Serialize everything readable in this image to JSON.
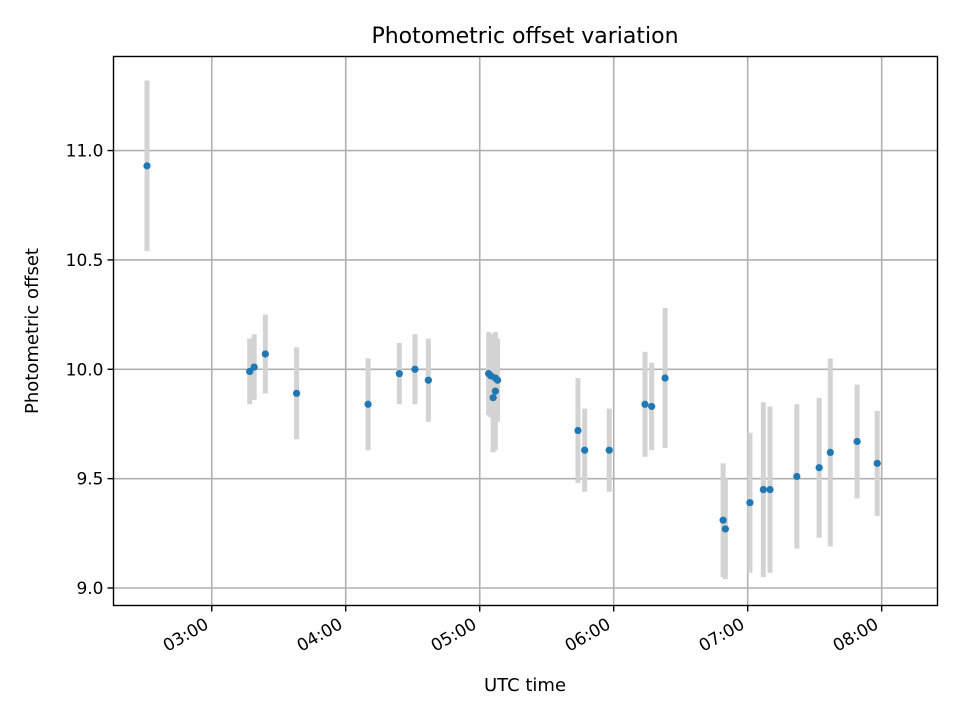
{
  "chart_data": {
    "type": "scatter",
    "title": "Photometric offset variation",
    "xlabel": "UTC time",
    "ylabel": "Photometric offset",
    "x_ticks": [
      "03:00",
      "04:00",
      "05:00",
      "06:00",
      "07:00",
      "08:00"
    ],
    "y_ticks": [
      "9.0",
      "9.5",
      "10.0",
      "10.5",
      "11.0"
    ],
    "xlim": [
      "02:16",
      "08:25"
    ],
    "ylim": [
      8.92,
      11.43
    ],
    "grid": true,
    "colors": {
      "point": "#1f77b4",
      "errorbar": "#d3d3d3"
    },
    "points": [
      {
        "x": "02:31",
        "y": 10.93,
        "err": 0.39
      },
      {
        "x": "03:17",
        "y": 9.99,
        "err": 0.15
      },
      {
        "x": "03:19",
        "y": 10.01,
        "err": 0.15
      },
      {
        "x": "03:24",
        "y": 10.07,
        "err": 0.18
      },
      {
        "x": "03:38",
        "y": 9.89,
        "err": 0.21
      },
      {
        "x": "04:10",
        "y": 9.84,
        "err": 0.21
      },
      {
        "x": "04:24",
        "y": 9.98,
        "err": 0.14
      },
      {
        "x": "04:31",
        "y": 10.0,
        "err": 0.16
      },
      {
        "x": "04:37",
        "y": 9.95,
        "err": 0.19
      },
      {
        "x": "05:04",
        "y": 9.98,
        "err": 0.19
      },
      {
        "x": "05:05",
        "y": 9.97,
        "err": 0.19
      },
      {
        "x": "05:06",
        "y": 9.87,
        "err": 0.25
      },
      {
        "x": "05:07",
        "y": 9.9,
        "err": 0.27
      },
      {
        "x": "05:07",
        "y": 9.96,
        "err": 0.2
      },
      {
        "x": "05:08",
        "y": 9.95,
        "err": 0.19
      },
      {
        "x": "05:44",
        "y": 9.72,
        "err": 0.24
      },
      {
        "x": "05:47",
        "y": 9.63,
        "err": 0.19
      },
      {
        "x": "05:58",
        "y": 9.63,
        "err": 0.19
      },
      {
        "x": "06:14",
        "y": 9.84,
        "err": 0.24
      },
      {
        "x": "06:17",
        "y": 9.83,
        "err": 0.2
      },
      {
        "x": "06:23",
        "y": 9.96,
        "err": 0.32
      },
      {
        "x": "06:49",
        "y": 9.31,
        "err": 0.26
      },
      {
        "x": "06:50",
        "y": 9.27,
        "err": 0.23
      },
      {
        "x": "07:01",
        "y": 9.39,
        "err": 0.32
      },
      {
        "x": "07:07",
        "y": 9.45,
        "err": 0.4
      },
      {
        "x": "07:10",
        "y": 9.45,
        "err": 0.38
      },
      {
        "x": "07:22",
        "y": 9.51,
        "err": 0.33
      },
      {
        "x": "07:32",
        "y": 9.55,
        "err": 0.32
      },
      {
        "x": "07:37",
        "y": 9.62,
        "err": 0.43
      },
      {
        "x": "07:49",
        "y": 9.67,
        "err": 0.26
      },
      {
        "x": "07:58",
        "y": 9.57,
        "err": 0.24
      }
    ]
  }
}
